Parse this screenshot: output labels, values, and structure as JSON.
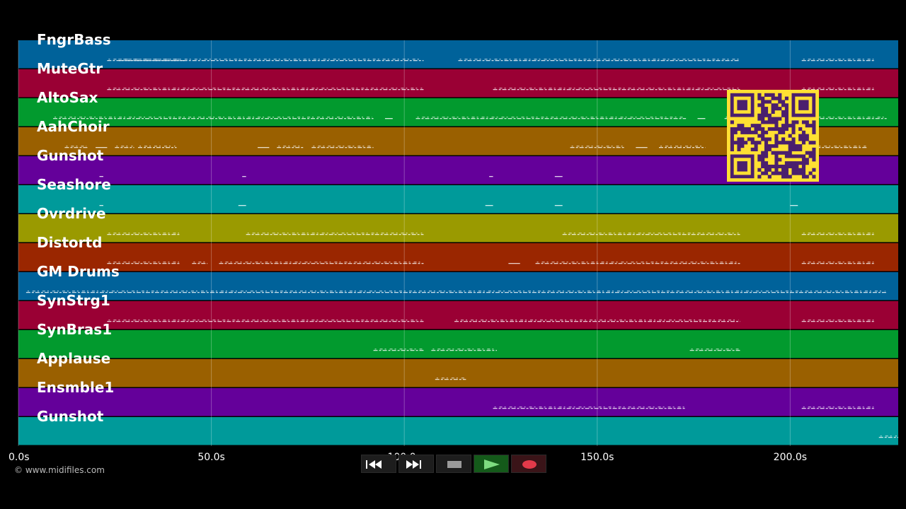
{
  "tracks": [
    {
      "name": "FngrBass",
      "color": "#00629a"
    },
    {
      "name": "MuteGtr",
      "color": "#9a0034"
    },
    {
      "name": "AltoSax",
      "color": "#029a2e"
    },
    {
      "name": "AahChoir",
      "color": "#9a6000"
    },
    {
      "name": "Gunshot",
      "color": "#64009a"
    },
    {
      "name": "Seashore",
      "color": "#009a9a"
    },
    {
      "name": "Ovrdrive",
      "color": "#9a9a00"
    },
    {
      "name": "Distortd",
      "color": "#9a2600"
    },
    {
      "name": "GM Drums",
      "color": "#00629a"
    },
    {
      "name": "SynStrg1",
      "color": "#9a0034"
    },
    {
      "name": "SynBras1",
      "color": "#029a2e"
    },
    {
      "name": "Applause",
      "color": "#9a6000"
    },
    {
      "name": "Ensmble1",
      "color": "#64009a"
    },
    {
      "name": "Gunshot",
      "color": "#009a9a"
    }
  ],
  "timeline": {
    "max_seconds": 228,
    "ticks": [
      {
        "value": 0,
        "label": "0.0s"
      },
      {
        "value": 50,
        "label": "50.0s"
      },
      {
        "value": 100,
        "label": "100.0s"
      },
      {
        "value": 150,
        "label": "150.0s"
      },
      {
        "value": 200,
        "label": "200.0s"
      }
    ]
  },
  "credit": "© www.midifiles.com",
  "transport": {
    "buttons": [
      {
        "name": "rewind-button",
        "icon": "rewind-icon"
      },
      {
        "name": "fast-forward-button",
        "icon": "fast-forward-icon"
      },
      {
        "name": "stop-button",
        "icon": "stop-icon"
      },
      {
        "name": "play-button",
        "icon": "play-icon",
        "accent": "#1f8a2a"
      },
      {
        "name": "record-button",
        "icon": "record-icon",
        "accent": "#d03040"
      }
    ]
  },
  "note_segments": [
    [
      [
        23,
        43
      ],
      [
        26,
        105
      ],
      [
        114,
        187
      ],
      [
        203,
        222
      ]
    ],
    [
      [
        23,
        105
      ],
      [
        123,
        187
      ],
      [
        203,
        222
      ]
    ],
    [
      [
        9,
        92
      ],
      [
        95,
        97
      ],
      [
        103,
        173
      ],
      [
        176,
        178
      ],
      [
        183,
        193
      ],
      [
        203,
        225
      ]
    ],
    [
      [
        12,
        18
      ],
      [
        20,
        23
      ],
      [
        25,
        30
      ],
      [
        31,
        41
      ],
      [
        62,
        65
      ],
      [
        67,
        74
      ],
      [
        76,
        92
      ],
      [
        143,
        157
      ],
      [
        160,
        163
      ],
      [
        166,
        178
      ],
      [
        202,
        220
      ]
    ],
    [
      [
        21,
        22
      ],
      [
        58,
        59
      ],
      [
        122,
        123
      ],
      [
        139,
        141
      ]
    ],
    [
      [
        21,
        22
      ],
      [
        57,
        59
      ],
      [
        121,
        123
      ],
      [
        139,
        141
      ],
      [
        200,
        202
      ]
    ],
    [
      [
        23,
        42
      ],
      [
        59,
        105
      ],
      [
        141,
        187
      ],
      [
        203,
        222
      ]
    ],
    [
      [
        23,
        42
      ],
      [
        45,
        49
      ],
      [
        52,
        105
      ],
      [
        127,
        130
      ],
      [
        134,
        187
      ],
      [
        203,
        222
      ]
    ],
    [
      [
        2,
        225
      ]
    ],
    [
      [
        23,
        105
      ],
      [
        113,
        187
      ],
      [
        203,
        222
      ]
    ],
    [
      [
        92,
        105
      ],
      [
        107,
        124
      ],
      [
        174,
        187
      ]
    ],
    [
      [
        108,
        116
      ]
    ],
    [
      [
        123,
        173
      ],
      [
        203,
        222
      ]
    ],
    [
      [
        223,
        228
      ]
    ]
  ]
}
